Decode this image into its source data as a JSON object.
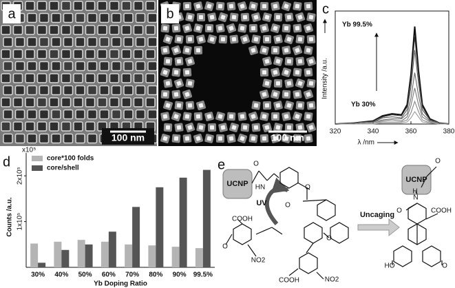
{
  "panels": {
    "a": {
      "label": "a",
      "scale_bar": "100 nm"
    },
    "b": {
      "label": "b",
      "scale_bar": "100 nm"
    },
    "c": {
      "label": "c"
    },
    "d": {
      "label": "d"
    },
    "e": {
      "label": "e"
    }
  },
  "chart_data": [
    {
      "type": "line",
      "y_label": "Intensity /a.u.",
      "x_label": "λ /nm",
      "annotations": [
        "Yb 99.5%",
        "Yb 30%"
      ],
      "x": [
        320,
        330,
        340,
        345,
        350,
        355,
        358,
        360,
        362,
        364,
        366,
        370,
        375,
        380
      ],
      "series": [
        {
          "color": "#111111",
          "values": [
            0,
            1,
            3,
            8,
            10,
            9,
            19,
            48,
            95,
            52,
            19,
            5,
            1,
            0
          ]
        },
        {
          "color": "#333333",
          "values": [
            0,
            1,
            3,
            7,
            9,
            8,
            17,
            43,
            85,
            47,
            17,
            4,
            1,
            0
          ]
        },
        {
          "color": "#555555",
          "values": [
            0,
            1,
            2,
            6,
            7,
            6,
            14,
            36,
            72,
            40,
            14,
            4,
            1,
            0
          ]
        },
        {
          "color": "#666666",
          "values": [
            0,
            1,
            2,
            4,
            5,
            5,
            10,
            25,
            50,
            28,
            10,
            3,
            1,
            0
          ]
        },
        {
          "color": "#777777",
          "values": [
            0,
            0,
            1,
            3,
            4,
            3,
            7,
            18,
            35,
            19,
            7,
            2,
            0,
            0
          ]
        },
        {
          "color": "#888888",
          "values": [
            0,
            0,
            1,
            2,
            2,
            2,
            4,
            11,
            22,
            12,
            4,
            1,
            0,
            0
          ]
        },
        {
          "color": "#999999",
          "values": [
            0,
            0,
            0,
            1,
            1,
            1,
            2,
            6,
            12,
            7,
            2,
            1,
            0,
            0
          ]
        }
      ],
      "xlim": [
        320,
        380
      ],
      "xticks": [
        320,
        340,
        360,
        380
      ],
      "ylim": [
        0,
        110
      ]
    },
    {
      "type": "bar",
      "y_label": "Counts /a.u.",
      "y_unit": "x10⁵",
      "x_label": "Yb Doping Ratio",
      "categories": [
        "30%",
        "40%",
        "50%",
        "60%",
        "70%",
        "80%",
        "90%",
        "99.5%"
      ],
      "series": [
        {
          "name": "core*100 folds",
          "color": "#b4b4b4",
          "values": [
            52000,
            56000,
            60000,
            56000,
            50000,
            48000,
            45000,
            42000
          ]
        },
        {
          "name": "core/shell",
          "color": "#555555",
          "values": [
            10000,
            38000,
            50000,
            78000,
            132000,
            175000,
            196000,
            213000
          ]
        }
      ],
      "ylim": [
        0,
        250000
      ],
      "yticks": [
        {
          "value": 100000,
          "label": "1x10⁵"
        },
        {
          "value": 200000,
          "label": "2x10⁵"
        }
      ],
      "legend": "upper left"
    }
  ],
  "scheme": {
    "labels": [
      "UCNP",
      "O",
      "HN",
      "UV",
      "O",
      "O",
      "COOH",
      "O",
      "NO2",
      "O",
      "COOH",
      "NO2",
      "Uncaging",
      "UCNP",
      "O",
      "H",
      "N",
      "O",
      "COOH",
      "HO",
      "O"
    ]
  }
}
